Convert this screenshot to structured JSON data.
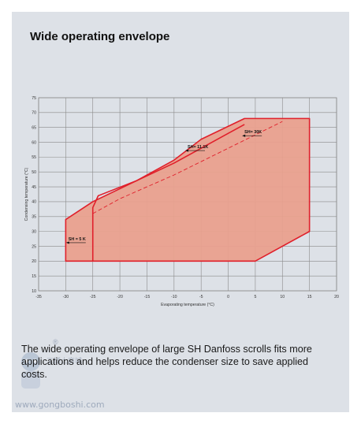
{
  "header": {
    "title": "Wide operating envelope"
  },
  "caption": "The wide operating envelope of large SH Danfoss scrolls fits more applications and helps reduce the condenser size to save applied costs.",
  "watermark": {
    "reg": "®",
    "cn": "工博士商城",
    "url": "www.gongboshi.com"
  },
  "colors": {
    "fill": "#e9a08e",
    "edge": "#e0202b",
    "grid": "#8a8a8a",
    "bg": "#dde1e7"
  },
  "chart_data": {
    "type": "area",
    "xlabel": "Evaporating temperature (°C)",
    "ylabel": "Condensing temperature (°C)",
    "xlim": [
      -35,
      20
    ],
    "ylim": [
      10,
      75
    ],
    "xticks": [
      -35,
      -30,
      -25,
      -20,
      -15,
      -10,
      -5,
      0,
      5,
      10,
      15,
      20
    ],
    "yticks": [
      10,
      15,
      20,
      25,
      30,
      35,
      40,
      45,
      50,
      55,
      60,
      65,
      70,
      75
    ],
    "grid": true,
    "series": [
      {
        "name": "SH = 5 K",
        "style": "solid",
        "points": [
          [
            -30,
            20
          ],
          [
            -30,
            34
          ],
          [
            -25,
            40
          ],
          [
            -17,
            47
          ],
          [
            -10,
            54
          ],
          [
            -5,
            61
          ],
          [
            3,
            68
          ],
          [
            15,
            68
          ],
          [
            15,
            30
          ],
          [
            5,
            20
          ]
        ]
      },
      {
        "name": "SH= 11.1K",
        "style": "solid",
        "points": [
          [
            -25,
            20
          ],
          [
            -25,
            38
          ],
          [
            -24,
            42
          ],
          [
            -17,
            47
          ],
          [
            -10,
            53
          ],
          [
            -5,
            58
          ],
          [
            0,
            63
          ],
          [
            3,
            66
          ]
        ]
      },
      {
        "name": "SH= 30K",
        "style": "dashed",
        "points": [
          [
            -25,
            36
          ],
          [
            -20,
            41
          ],
          [
            -10,
            49
          ],
          [
            0,
            58
          ],
          [
            10,
            67
          ]
        ]
      }
    ],
    "annotations": [
      {
        "text": "SH = 5 K",
        "x": -29.5,
        "y": 27
      },
      {
        "text": "SH= 11.1K",
        "x": -7.5,
        "y": 58
      },
      {
        "text": "SH= 30K",
        "x": 3,
        "y": 63
      }
    ]
  }
}
